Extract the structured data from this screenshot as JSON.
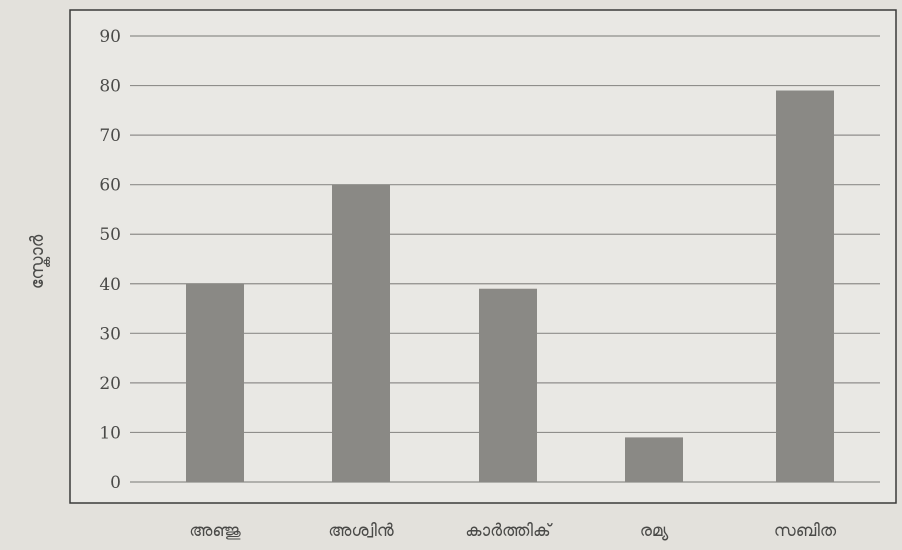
{
  "chart_data": {
    "type": "bar",
    "title": "",
    "xlabel": "",
    "ylabel": "സ്കോർ",
    "categories": [
      "അഞ്ജു",
      "അശ്വിൻ",
      "കാർത്തിക്",
      "രമ്യ",
      "സബിത"
    ],
    "values": [
      40,
      60,
      39,
      9,
      79
    ],
    "ylim": [
      0,
      90
    ],
    "yticks": [
      "0",
      "10",
      "20",
      "30",
      "40",
      "50",
      "60",
      "70",
      "80",
      "90"
    ],
    "grid": true,
    "legend": "none",
    "colors": {
      "bar": "#8a8985",
      "grid": "#8f8e8b",
      "axis": "#3a3a3a",
      "plot_bg": "#e9e8e4",
      "page_bg": "#e3e1dc",
      "text": "#4a4a48"
    }
  }
}
